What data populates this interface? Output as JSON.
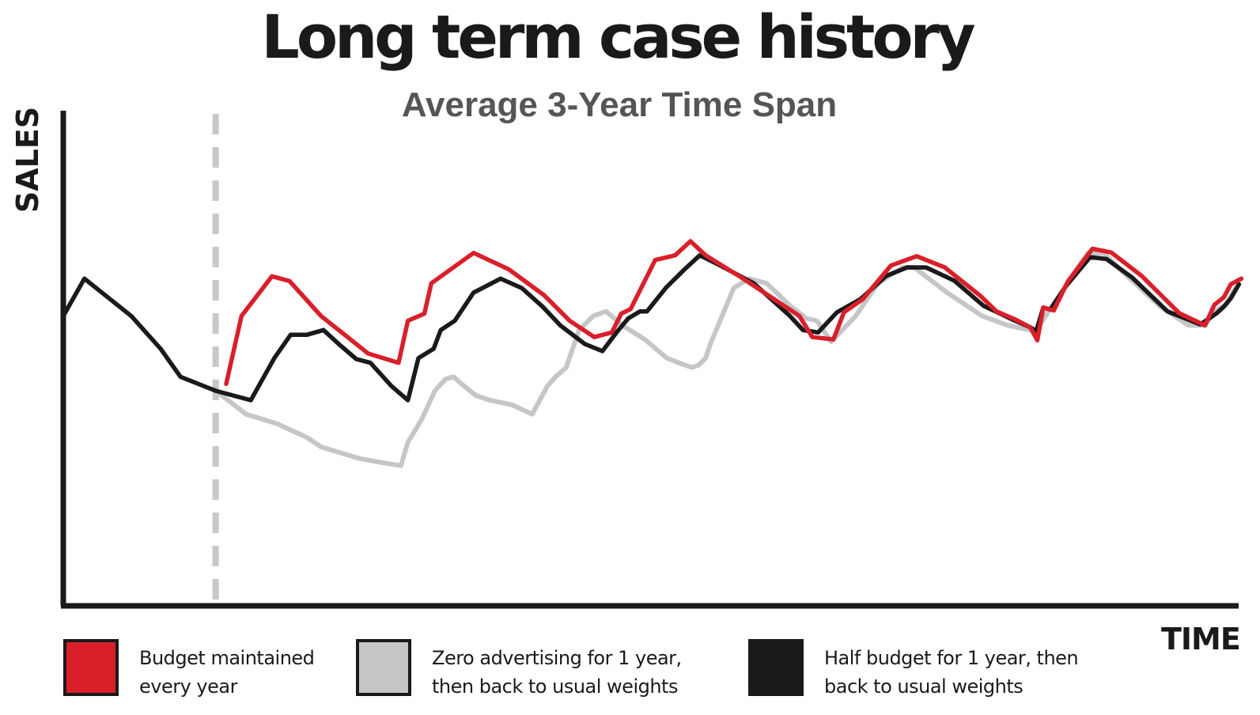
{
  "title": "Long term case history",
  "subtitle": "Average 3-Year Time Span",
  "colors": {
    "budget_maintained": "#d9202a",
    "zero_advertising": "#c4c6c7",
    "half_budget": "#1a1a1a",
    "axis": "#1a1a1a",
    "divider": "#c8c8c8"
  },
  "chart_data": {
    "type": "line",
    "title": "Long term case history",
    "subtitle": "Average 3-Year Time Span",
    "xlabel": "TIME",
    "ylabel": "SALES",
    "grid": false,
    "axis_ticks": "none",
    "xlim": [
      0,
      100
    ],
    "ylim": [
      0,
      100
    ],
    "divider_x": 13,
    "legend_position": "bottom",
    "legend": [
      {
        "lines": [
          "Budget maintained",
          "every year"
        ],
        "series": "budget_maintained"
      },
      {
        "lines": [
          "Zero advertising for 1 year,",
          "then back to usual weights"
        ],
        "series": "zero_advertising"
      },
      {
        "lines": [
          "Half budget for 1 year, then",
          "back to usual weights"
        ],
        "series": "half_budget"
      }
    ],
    "series": [
      {
        "key": "history",
        "color": "#1a1a1a",
        "points": [
          [
            0,
            62
          ],
          [
            1.8,
            70
          ],
          [
            5.8,
            62
          ],
          [
            8.3,
            55
          ],
          [
            10,
            49
          ],
          [
            13,
            46
          ]
        ]
      },
      {
        "key": "budget_maintained",
        "color": "#d9202a",
        "points": [
          [
            13.9,
            47.5
          ],
          [
            15.2,
            62
          ],
          [
            17.8,
            70.5
          ],
          [
            19.3,
            69.5
          ],
          [
            22,
            62
          ],
          [
            24,
            58
          ],
          [
            26,
            54
          ],
          [
            28.6,
            52
          ],
          [
            29.4,
            61
          ],
          [
            30.8,
            62.5
          ],
          [
            31.4,
            69
          ],
          [
            35,
            75.5
          ],
          [
            38,
            72
          ],
          [
            41,
            66.5
          ],
          [
            43.2,
            61
          ],
          [
            45.3,
            57.5
          ],
          [
            46.8,
            58.5
          ],
          [
            47.6,
            62.5
          ],
          [
            48.4,
            63.5
          ],
          [
            50.5,
            74
          ],
          [
            52.2,
            75
          ],
          [
            53.5,
            78
          ],
          [
            54.8,
            75
          ],
          [
            58,
            70
          ],
          [
            62.8,
            62
          ],
          [
            63.9,
            57.5
          ],
          [
            65.7,
            57
          ],
          [
            66.6,
            62.8
          ],
          [
            68.2,
            65.6
          ],
          [
            70.6,
            72.8
          ],
          [
            72.8,
            74.8
          ],
          [
            75.2,
            72.4
          ],
          [
            78.3,
            66.2
          ],
          [
            79.6,
            63
          ],
          [
            81.1,
            61.4
          ],
          [
            82.5,
            59.6
          ],
          [
            83.1,
            56.8
          ],
          [
            83.6,
            63.8
          ],
          [
            84.5,
            63.2
          ],
          [
            85.7,
            69.4
          ],
          [
            87.8,
            76.4
          ],
          [
            89.4,
            75.6
          ],
          [
            92,
            70.6
          ],
          [
            95.2,
            62.6
          ],
          [
            97.4,
            60
          ],
          [
            98.2,
            64.4
          ],
          [
            99,
            66
          ],
          [
            99.6,
            68.8
          ],
          [
            100.5,
            70
          ]
        ]
      },
      {
        "key": "zero_advertising",
        "color": "#c4c6c7",
        "points": [
          [
            13,
            46
          ],
          [
            15.6,
            41
          ],
          [
            18.2,
            39
          ],
          [
            20.8,
            36
          ],
          [
            22,
            34
          ],
          [
            25.3,
            31.5
          ],
          [
            27.5,
            30.5
          ],
          [
            28.8,
            30
          ],
          [
            29.4,
            35
          ],
          [
            30.6,
            40
          ],
          [
            31.7,
            46
          ],
          [
            32.6,
            48.5
          ],
          [
            33.3,
            49
          ],
          [
            34.2,
            47
          ],
          [
            35.2,
            45
          ],
          [
            36.4,
            44
          ],
          [
            38.3,
            43
          ],
          [
            40,
            41
          ],
          [
            41.3,
            47
          ],
          [
            42,
            49
          ],
          [
            42.9,
            51
          ],
          [
            44,
            59
          ],
          [
            45.2,
            62
          ],
          [
            46.3,
            63
          ],
          [
            47.7,
            60
          ],
          [
            49.6,
            57
          ],
          [
            51.5,
            53
          ],
          [
            52.5,
            52
          ],
          [
            53.6,
            51
          ],
          [
            54.2,
            51.5
          ],
          [
            54.8,
            53
          ],
          [
            55.2,
            56
          ],
          [
            57.2,
            68
          ],
          [
            58.5,
            70
          ],
          [
            60,
            69
          ],
          [
            62.1,
            64
          ],
          [
            63.4,
            61.5
          ],
          [
            64.3,
            61
          ],
          [
            65.5,
            56.5
          ],
          [
            67.6,
            62
          ],
          [
            69.5,
            69
          ],
          [
            71.6,
            72.4
          ],
          [
            72.6,
            72.4
          ],
          [
            75.4,
            67
          ],
          [
            78.4,
            62
          ],
          [
            80.6,
            60
          ],
          [
            82.5,
            59
          ],
          [
            83,
            59
          ],
          [
            83.8,
            62
          ],
          [
            85.5,
            68.4
          ],
          [
            87.4,
            75.5
          ],
          [
            88.8,
            75.4
          ],
          [
            90.4,
            71.4
          ],
          [
            93.6,
            64
          ],
          [
            96,
            60
          ],
          [
            97.4,
            60
          ],
          [
            98.2,
            63
          ],
          [
            99.2,
            64.4
          ],
          [
            100,
            68
          ]
        ]
      },
      {
        "key": "half_budget",
        "color": "#1a1a1a",
        "points": [
          [
            13,
            46
          ],
          [
            16,
            44
          ],
          [
            18,
            53
          ],
          [
            19.4,
            58
          ],
          [
            20.8,
            58
          ],
          [
            22.2,
            59
          ],
          [
            23.5,
            56
          ],
          [
            25,
            52.8
          ],
          [
            26.2,
            52
          ],
          [
            28,
            47
          ],
          [
            29.4,
            44
          ],
          [
            30.3,
            53
          ],
          [
            31.6,
            55
          ],
          [
            32.2,
            59
          ],
          [
            33.4,
            61
          ],
          [
            35,
            67
          ],
          [
            37.3,
            70
          ],
          [
            39.1,
            68
          ],
          [
            40.9,
            64
          ],
          [
            42.4,
            60
          ],
          [
            44.5,
            56
          ],
          [
            46,
            54.5
          ],
          [
            47.2,
            58.5
          ],
          [
            48.2,
            61.5
          ],
          [
            49.2,
            63
          ],
          [
            49.8,
            63
          ],
          [
            51.4,
            68
          ],
          [
            53,
            72
          ],
          [
            54.3,
            75
          ],
          [
            55.9,
            73
          ],
          [
            58.9,
            69
          ],
          [
            62,
            62
          ],
          [
            63.1,
            59
          ],
          [
            64.4,
            58.5
          ],
          [
            66,
            62.8
          ],
          [
            68,
            65.6
          ],
          [
            70.2,
            70.6
          ],
          [
            72,
            72.4
          ],
          [
            73.6,
            72.4
          ],
          [
            76,
            69.6
          ],
          [
            78.5,
            64.2
          ],
          [
            81.2,
            61
          ],
          [
            82.5,
            59.6
          ],
          [
            83,
            58.8
          ],
          [
            83.6,
            63.8
          ],
          [
            84.2,
            63.4
          ],
          [
            85.6,
            68.6
          ],
          [
            87.6,
            74.6
          ],
          [
            89,
            74.2
          ],
          [
            91.2,
            70.2
          ],
          [
            94.2,
            63
          ],
          [
            97,
            60.2
          ],
          [
            98.4,
            62.6
          ],
          [
            99,
            64
          ],
          [
            99.6,
            65.8
          ],
          [
            100.3,
            68.8
          ]
        ]
      }
    ]
  },
  "legend": {
    "item1_line1": "Budget maintained",
    "item1_line2": "every year",
    "item2_line1": "Zero advertising for 1 year,",
    "item2_line2": "then back to usual weights",
    "item3_line1": "Half budget for 1 year, then",
    "item3_line2": "back to usual weights"
  }
}
